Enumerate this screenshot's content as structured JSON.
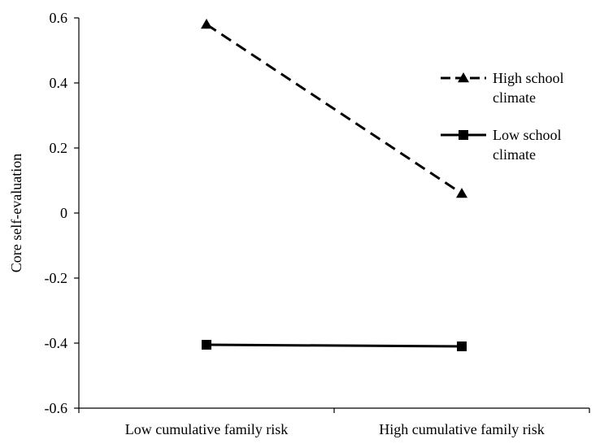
{
  "chart_data": {
    "type": "line",
    "title": "",
    "xlabel": "",
    "ylabel": "Core self-evaluation",
    "categories": [
      "Low cumulative family risk",
      "High cumulative family risk"
    ],
    "ylim": [
      -0.6,
      0.6
    ],
    "yticks": [
      0.6,
      0.4,
      0.2,
      0,
      -0.2,
      -0.4,
      -0.6
    ],
    "ytick_labels": [
      "0.6",
      "0.4",
      "0.2",
      "0",
      "-0.2",
      "-0.4",
      "-0.6"
    ],
    "grid": false,
    "legend_position": "right",
    "series": [
      {
        "name": "High school climate",
        "legend_lines": [
          "High school",
          "climate"
        ],
        "values": [
          0.58,
          0.06
        ],
        "line_style": "dashed",
        "marker": "triangle",
        "color": "#000000"
      },
      {
        "name": "Low school climate",
        "legend_lines": [
          "Low school",
          "climate"
        ],
        "values": [
          -0.405,
          -0.41
        ],
        "line_style": "solid",
        "marker": "square",
        "color": "#000000"
      }
    ]
  }
}
